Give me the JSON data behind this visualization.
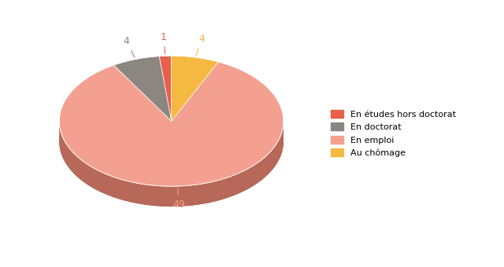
{
  "labels": [
    "En études hors doctorat",
    "En doctorat",
    "En emploi",
    "Au chômage"
  ],
  "values": [
    1,
    4,
    49,
    4
  ],
  "colors": [
    "#e8604c",
    "#8c8680",
    "#f4a090",
    "#f5b942"
  ],
  "side_colors": [
    "#a84030",
    "#5a5250",
    "#b86858",
    "#b08020"
  ],
  "bottom_color": "#7a4035",
  "label_values": [
    "1",
    "4",
    "49",
    "4"
  ],
  "label_colors": [
    "#e8604c",
    "#8c8680",
    "#f4a090",
    "#f5b942"
  ],
  "startangle": 90,
  "figsize": [
    6.4,
    3.4
  ],
  "dpi": 100,
  "legend_labels": [
    "En études hors doctorat",
    "En doctorat",
    "En emploi",
    "Au chômage"
  ],
  "legend_colors": [
    "#e8604c",
    "#8c8680",
    "#f4a090",
    "#f5b942"
  ]
}
